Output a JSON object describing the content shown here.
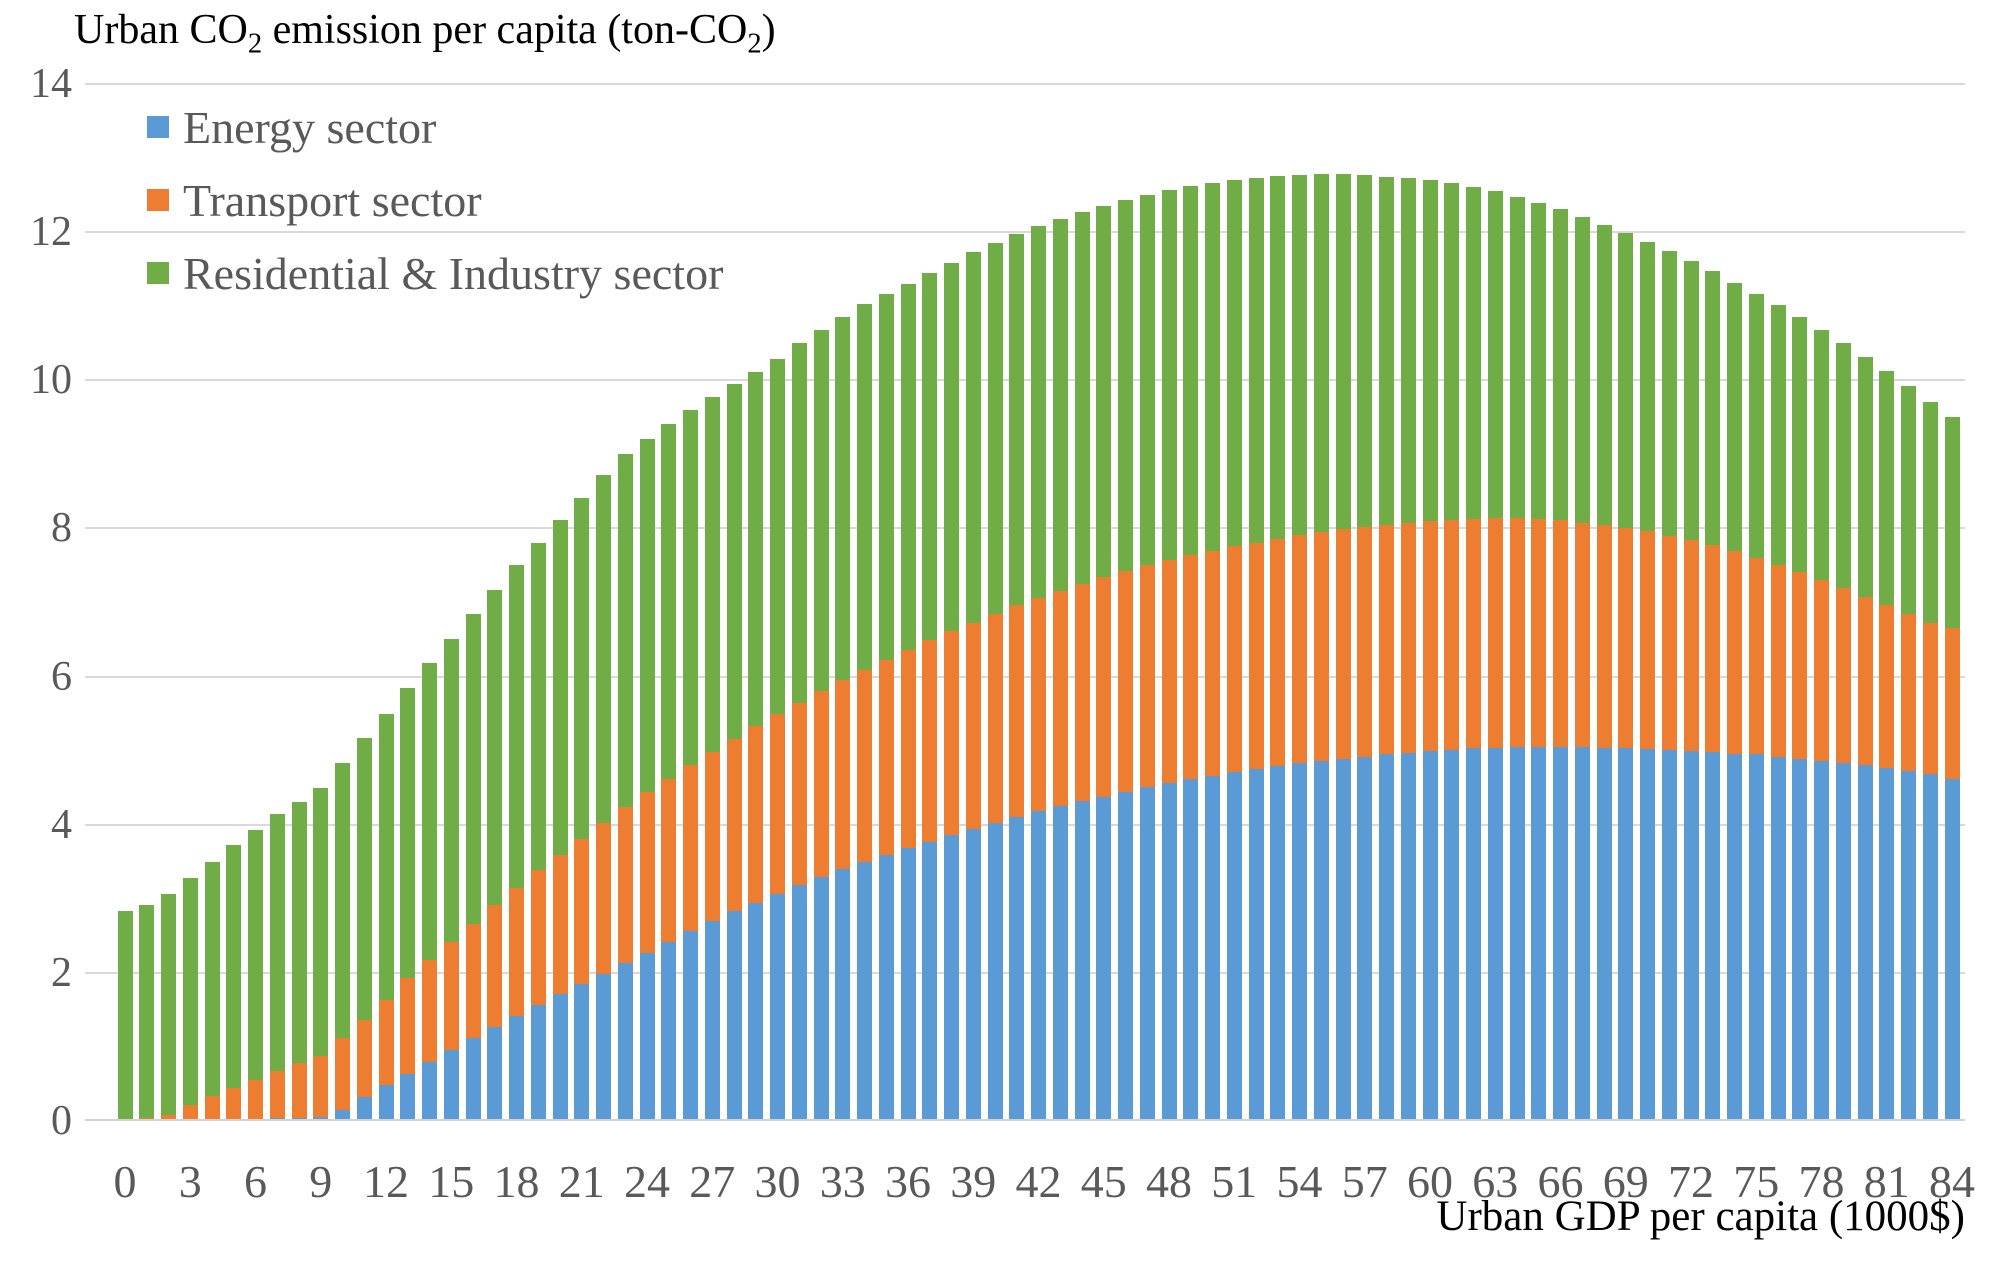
{
  "title": {
    "pre": "Urban CO",
    "sub1": "2",
    "mid": " emission per capita (ton-CO",
    "sub2": "2",
    "post": ")"
  },
  "legend": [
    {
      "label": "Energy sector",
      "color": "#5b9bd5"
    },
    {
      "label": "Transport sector",
      "color": "#ed7d31"
    },
    {
      "label": "Residential & Industry sector",
      "color": "#70ad47"
    }
  ],
  "axes": {
    "x": {
      "caption": "Urban GDP per capita (1000$)",
      "tick_labels": [
        "0",
        "3",
        "6",
        "9",
        "12",
        "15",
        "18",
        "21",
        "24",
        "27",
        "30",
        "33",
        "36",
        "39",
        "42",
        "45",
        "48",
        "51",
        "54",
        "57",
        "60",
        "63",
        "66",
        "69",
        "72",
        "75",
        "78",
        "81",
        "84"
      ],
      "tick_step": 3
    },
    "y": {
      "tick_labels": [
        "0",
        "2",
        "4",
        "6",
        "8",
        "10",
        "12",
        "14"
      ],
      "min": 0,
      "max": 14,
      "step": 2
    }
  },
  "colors": {
    "energy": "#5b9bd5",
    "transport": "#ed7d31",
    "residential": "#70ad47",
    "gridline": "#d9d9d9",
    "tick_text": "#595959",
    "title_text": "#000000"
  },
  "chart_data": {
    "type": "bar",
    "stacked": true,
    "title": "Urban CO2 emission per capita (ton-CO2)",
    "xlabel": "Urban GDP per capita (1000$)",
    "ylabel": "Urban CO2 emission per capita (ton-CO2)",
    "ylim": [
      0,
      14
    ],
    "grid": true,
    "legend_position": "top-left-inside",
    "x": [
      0,
      1,
      2,
      3,
      4,
      5,
      6,
      7,
      8,
      9,
      10,
      11,
      12,
      13,
      14,
      15,
      16,
      17,
      18,
      19,
      20,
      21,
      22,
      23,
      24,
      25,
      26,
      27,
      28,
      29,
      30,
      31,
      32,
      33,
      34,
      35,
      36,
      37,
      38,
      39,
      40,
      41,
      42,
      43,
      44,
      45,
      46,
      47,
      48,
      49,
      50,
      51,
      52,
      53,
      54,
      55,
      56,
      57,
      58,
      59,
      60,
      61,
      62,
      63,
      64,
      65,
      66,
      67,
      68,
      69,
      70,
      71,
      72,
      73,
      74,
      75,
      76,
      77,
      78,
      79,
      80,
      81,
      82,
      83,
      84
    ],
    "series": [
      {
        "name": "Energy sector",
        "values": [
          0.03,
          0.03,
          0.03,
          0.03,
          0.03,
          0.03,
          0.03,
          0.04,
          0.04,
          0.05,
          0.15,
          0.32,
          0.48,
          0.64,
          0.8,
          0.96,
          1.12,
          1.27,
          1.42,
          1.56,
          1.71,
          1.85,
          1.99,
          2.13,
          2.27,
          2.42,
          2.56,
          2.7,
          2.83,
          2.95,
          3.07,
          3.18,
          3.29,
          3.4,
          3.5,
          3.59,
          3.68,
          3.77,
          3.86,
          3.94,
          4.03,
          4.1,
          4.18,
          4.25,
          4.32,
          4.38,
          4.44,
          4.51,
          4.56,
          4.62,
          4.66,
          4.71,
          4.75,
          4.79,
          4.83,
          4.86,
          4.89,
          4.92,
          4.95,
          4.97,
          4.99,
          5.01,
          5.03,
          5.04,
          5.05,
          5.05,
          5.05,
          5.05,
          5.04,
          5.03,
          5.02,
          5.01,
          4.99,
          4.98,
          4.96,
          4.95,
          4.92,
          4.89,
          4.86,
          4.83,
          4.8,
          4.77,
          4.72,
          4.68,
          4.62
        ]
      },
      {
        "name": "Transport sector",
        "values": [
          0.0,
          0.01,
          0.05,
          0.18,
          0.31,
          0.42,
          0.53,
          0.64,
          0.74,
          0.83,
          0.97,
          1.05,
          1.16,
          1.29,
          1.37,
          1.46,
          1.54,
          1.64,
          1.73,
          1.83,
          1.88,
          1.96,
          2.04,
          2.11,
          2.17,
          2.2,
          2.24,
          2.28,
          2.33,
          2.38,
          2.42,
          2.47,
          2.51,
          2.55,
          2.59,
          2.64,
          2.68,
          2.72,
          2.75,
          2.79,
          2.82,
          2.86,
          2.88,
          2.91,
          2.93,
          2.96,
          2.98,
          2.99,
          3.01,
          3.02,
          3.04,
          3.05,
          3.06,
          3.07,
          3.08,
          3.09,
          3.1,
          3.1,
          3.1,
          3.11,
          3.11,
          3.11,
          3.1,
          3.1,
          3.09,
          3.08,
          3.06,
          3.03,
          3.01,
          2.98,
          2.94,
          2.89,
          2.85,
          2.79,
          2.73,
          2.65,
          2.59,
          2.52,
          2.45,
          2.37,
          2.28,
          2.19,
          2.12,
          2.05,
          2.03
        ]
      },
      {
        "name": "Residential & Industry sector",
        "values": [
          2.8,
          2.88,
          2.99,
          3.07,
          3.16,
          3.27,
          3.37,
          3.46,
          3.53,
          3.62,
          3.71,
          3.8,
          3.86,
          3.91,
          4.01,
          4.09,
          4.19,
          4.26,
          4.35,
          4.42,
          4.52,
          4.6,
          4.69,
          4.76,
          4.77,
          4.79,
          4.8,
          4.8,
          4.79,
          4.78,
          4.8,
          4.85,
          4.88,
          4.9,
          4.94,
          4.94,
          4.94,
          4.96,
          4.98,
          5.0,
          5.01,
          5.01,
          5.02,
          5.02,
          5.02,
          5.01,
          5.01,
          5.0,
          5.0,
          4.98,
          4.96,
          4.94,
          4.92,
          4.9,
          4.86,
          4.83,
          4.79,
          4.75,
          4.7,
          4.65,
          4.6,
          4.54,
          4.48,
          4.41,
          4.34,
          4.27,
          4.2,
          4.13,
          4.05,
          3.98,
          3.91,
          3.84,
          3.77,
          3.7,
          3.63,
          3.57,
          3.5,
          3.44,
          3.37,
          3.3,
          3.24,
          3.16,
          3.08,
          2.98,
          2.85
        ]
      }
    ]
  }
}
